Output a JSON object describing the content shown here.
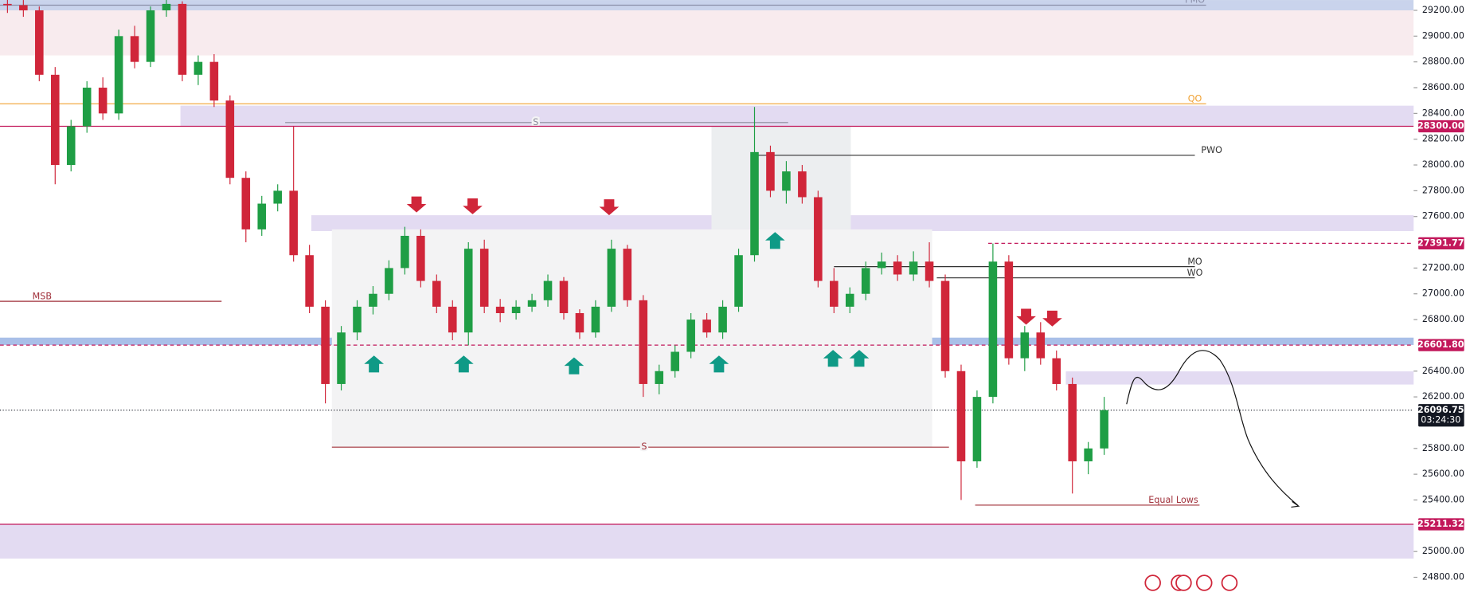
{
  "chart_data": {
    "type": "candlestick",
    "ylim": [
      24655,
      29280
    ],
    "yticks": [
      {
        "value": 29200,
        "label": "29200.00"
      },
      {
        "value": 29000,
        "label": "29000.00"
      },
      {
        "value": 28800,
        "label": "28800.00"
      },
      {
        "value": 28600,
        "label": "28600.00"
      },
      {
        "value": 28400,
        "label": "28400.00"
      },
      {
        "value": 28200,
        "label": "28200.00"
      },
      {
        "value": 28000,
        "label": "28000.00"
      },
      {
        "value": 27800,
        "label": "27800.00"
      },
      {
        "value": 27600,
        "label": "27600.00"
      },
      {
        "value": 27200,
        "label": "27200.00"
      },
      {
        "value": 27000,
        "label": "27000.00"
      },
      {
        "value": 26800,
        "label": "26800.00"
      },
      {
        "value": 26400,
        "label": "26400.00"
      },
      {
        "value": 26200,
        "label": "26200.00"
      },
      {
        "value": 25800,
        "label": "25800.00"
      },
      {
        "value": 25600,
        "label": "25600.00"
      },
      {
        "value": 25400,
        "label": "25400.00"
      },
      {
        "value": 25000,
        "label": "25000.00"
      },
      {
        "value": 24800,
        "label": "24800.00"
      }
    ],
    "up_color": "#1f9e45",
    "down_color": "#d0263a",
    "candles": [
      [
        29250,
        29290,
        29180,
        29240
      ],
      [
        29240,
        29280,
        29150,
        29200
      ],
      [
        29200,
        29230,
        28650,
        28700
      ],
      [
        28700,
        28760,
        27850,
        28000
      ],
      [
        28000,
        28350,
        27950,
        28300
      ],
      [
        28300,
        28650,
        28250,
        28600
      ],
      [
        28600,
        28680,
        28350,
        28400
      ],
      [
        28400,
        29050,
        28350,
        29000
      ],
      [
        29000,
        29080,
        28750,
        28800
      ],
      [
        28800,
        29230,
        28760,
        29200
      ],
      [
        29200,
        29290,
        29150,
        29250
      ],
      [
        29250,
        29270,
        28650,
        28700
      ],
      [
        28700,
        28850,
        28620,
        28800
      ],
      [
        28800,
        28860,
        28450,
        28500
      ],
      [
        28500,
        28540,
        27850,
        27900
      ],
      [
        27900,
        27950,
        27400,
        27500
      ],
      [
        27500,
        27760,
        27450,
        27700
      ],
      [
        27700,
        27850,
        27640,
        27800
      ],
      [
        27800,
        28300,
        27250,
        27300
      ],
      [
        27300,
        27380,
        26850,
        26900
      ],
      [
        26900,
        26950,
        26150,
        26300
      ],
      [
        26300,
        26750,
        26250,
        26700
      ],
      [
        26700,
        26950,
        26640,
        26900
      ],
      [
        26900,
        27060,
        26840,
        27000
      ],
      [
        27000,
        27260,
        26950,
        27200
      ],
      [
        27200,
        27520,
        27150,
        27450
      ],
      [
        27450,
        27500,
        27050,
        27100
      ],
      [
        27100,
        27150,
        26850,
        26900
      ],
      [
        26900,
        26950,
        26640,
        26700
      ],
      [
        26700,
        27400,
        26600,
        27350
      ],
      [
        27350,
        27420,
        26850,
        26900
      ],
      [
        26900,
        26960,
        26780,
        26850
      ],
      [
        26850,
        26950,
        26800,
        26900
      ],
      [
        26900,
        27000,
        26860,
        26950
      ],
      [
        26950,
        27150,
        26900,
        27100
      ],
      [
        27100,
        27130,
        26800,
        26850
      ],
      [
        26850,
        26880,
        26650,
        26700
      ],
      [
        26700,
        26950,
        26660,
        26900
      ],
      [
        26900,
        27420,
        26860,
        27350
      ],
      [
        27350,
        27380,
        26900,
        26950
      ],
      [
        26950,
        26990,
        26200,
        26300
      ],
      [
        26300,
        26450,
        26220,
        26400
      ],
      [
        26400,
        26600,
        26350,
        26550
      ],
      [
        26550,
        26850,
        26500,
        26800
      ],
      [
        26800,
        26850,
        26660,
        26700
      ],
      [
        26700,
        26950,
        26650,
        26900
      ],
      [
        26900,
        27350,
        26860,
        27300
      ],
      [
        27300,
        28450,
        27250,
        28100
      ],
      [
        28100,
        28150,
        27750,
        27800
      ],
      [
        27800,
        28030,
        27700,
        27950
      ],
      [
        27950,
        28000,
        27700,
        27750
      ],
      [
        27750,
        27800,
        27050,
        27100
      ],
      [
        27100,
        27200,
        26850,
        26900
      ],
      [
        26900,
        27050,
        26850,
        27000
      ],
      [
        27000,
        27250,
        26950,
        27200
      ],
      [
        27200,
        27320,
        27150,
        27250
      ],
      [
        27250,
        27300,
        27100,
        27150
      ],
      [
        27150,
        27330,
        27100,
        27250
      ],
      [
        27250,
        27400,
        27050,
        27100
      ],
      [
        27100,
        27150,
        26350,
        26400
      ],
      [
        26400,
        26450,
        25400,
        25700
      ],
      [
        25700,
        26250,
        25650,
        26200
      ],
      [
        26200,
        27390,
        26150,
        27250
      ],
      [
        27250,
        27300,
        26450,
        26500
      ],
      [
        26500,
        26750,
        26400,
        26700
      ],
      [
        26700,
        26780,
        26450,
        26500
      ],
      [
        26500,
        26560,
        26250,
        26300
      ],
      [
        26300,
        26350,
        25450,
        25700
      ],
      [
        25700,
        25850,
        25600,
        25800
      ],
      [
        25800,
        26200,
        25750,
        26096.75
      ]
    ],
    "zones": [
      {
        "range": [
          29200,
          29280
        ],
        "color": "#c9d3ec"
      },
      {
        "range": [
          28850,
          29200
        ],
        "color": "#f8ebee"
      },
      {
        "range": [
          28300,
          28460
        ],
        "color": "#e3dbf2"
      },
      {
        "range": [
          27487,
          27610
        ],
        "color": "#e3dbf2"
      },
      {
        "range": [
          26603,
          26660
        ],
        "color": "#a9bfe8"
      },
      {
        "range": [
          26296,
          26398
        ],
        "color": "#e3dbf2"
      },
      {
        "range": [
          24945,
          25211.32
        ],
        "color": "#e3dbf2"
      },
      {
        "range": [
          25810,
          27500
        ],
        "color": "#f3f3f4"
      },
      {
        "range": [
          27500,
          28300
        ],
        "color": "#eceef0"
      }
    ],
    "levels": [
      {
        "text": "PMO",
        "value": 29240,
        "color": "#8a8fa8"
      },
      {
        "text": "QO",
        "value": 28475,
        "color": "#f0a030"
      },
      {
        "text": "S",
        "value": 28329,
        "color": "#8a8a9a"
      },
      {
        "text": "PWO",
        "value": 28075,
        "color": "#333"
      },
      {
        "text": "MO",
        "value": 27211,
        "color": "#333"
      },
      {
        "text": "WO",
        "value": 27124,
        "color": "#333"
      },
      {
        "text": "MSB",
        "value": 26942,
        "color": "#a0303a"
      },
      {
        "text": "S",
        "value": 25810,
        "color": "#a0303a"
      },
      {
        "text": "Equal Lows",
        "value": 25360,
        "color": "#a0303a"
      }
    ],
    "price_labels": [
      {
        "value": 28300,
        "label": "28300.00",
        "color": "#c2185b"
      },
      {
        "value": 27391.77,
        "label": "27391.77",
        "color": "#c2185b"
      },
      {
        "value": 26601.8,
        "label": "26601.80",
        "color": "#c2185b"
      },
      {
        "value": 26096.75,
        "label": "26096.75",
        "color": "#131722",
        "countdown": "03:24:30"
      },
      {
        "value": 25211.32,
        "label": "25211.32",
        "color": "#c2185b"
      }
    ]
  }
}
